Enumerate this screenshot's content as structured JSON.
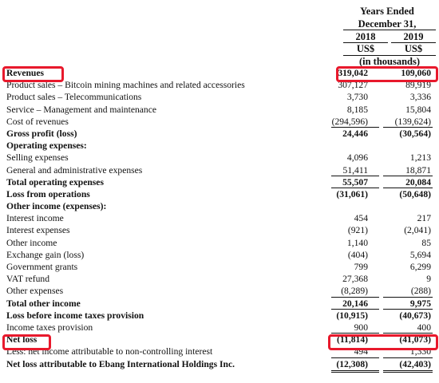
{
  "header": {
    "title_line1": "Years Ended",
    "title_line2": "December 31,",
    "year1": "2018",
    "year2": "2019",
    "currency1": "US$",
    "currency2": "US$",
    "unit": "(in thousands)"
  },
  "rows": [
    {
      "label": "Revenues",
      "v1": "319,042",
      "v2": "109,060",
      "bold": true
    },
    {
      "label": "Product sales – Bitcoin mining machines and related accessories",
      "v1": "307,127",
      "v2": "89,919"
    },
    {
      "label": "Product sales – Telecommunications",
      "v1": "3,730",
      "v2": "3,336"
    },
    {
      "label": "Service – Management and maintenance",
      "v1": "8,185",
      "v2": "15,804"
    },
    {
      "label": "Cost of revenues",
      "v1": "(294,596)",
      "v2": "(139,624)",
      "under": "single"
    },
    {
      "label": "Gross profit (loss)",
      "v1": "24,446",
      "v2": "(30,564)",
      "bold": true
    },
    {
      "label": "Operating expenses:",
      "v1": "",
      "v2": "",
      "bold": true
    },
    {
      "label": "Selling expenses",
      "v1": "4,096",
      "v2": "1,213"
    },
    {
      "label": "General and administrative expenses",
      "v1": "51,411",
      "v2": "18,871",
      "under": "single"
    },
    {
      "label": "Total operating expenses",
      "v1": "55,507",
      "v2": "20,084",
      "bold": true,
      "under": "single"
    },
    {
      "label": "Loss from operations",
      "v1": "(31,061)",
      "v2": "(50,648)",
      "bold": true
    },
    {
      "label": "Other income (expenses):",
      "v1": "",
      "v2": "",
      "bold": true
    },
    {
      "label": "Interest income",
      "v1": "454",
      "v2": "217"
    },
    {
      "label": "Interest expenses",
      "v1": "(921)",
      "v2": "(2,041)"
    },
    {
      "label": "Other income",
      "v1": "1,140",
      "v2": "85"
    },
    {
      "label": "Exchange gain (loss)",
      "v1": "(404)",
      "v2": "5,694"
    },
    {
      "label": "Government grants",
      "v1": "799",
      "v2": "6,299"
    },
    {
      "label": "VAT refund",
      "v1": "27,368",
      "v2": "9"
    },
    {
      "label": "Other expenses",
      "v1": "(8,289)",
      "v2": "(288)",
      "under": "single"
    },
    {
      "label": "Total other income",
      "v1": "20,146",
      "v2": "9,975",
      "bold": true,
      "under": "single"
    },
    {
      "label": "Loss before income taxes provision",
      "v1": "(10,915)",
      "v2": "(40,673)",
      "bold": true
    },
    {
      "label": "Income taxes provision",
      "v1": "900",
      "v2": "400",
      "under": "single"
    },
    {
      "label": "Net loss",
      "v1": "(11,814)",
      "v2": "(41,073)",
      "bold": true
    },
    {
      "label": "Less: net income attributable to non-controlling interest",
      "v1": "494",
      "v2": "1,330",
      "under": "single"
    },
    {
      "label": "Net loss attributable to Ebang International Holdings Inc.",
      "v1": "(12,308)",
      "v2": "(42,403)",
      "bold": true,
      "under": "double"
    }
  ],
  "colors": {
    "highlight": "#e8192c"
  }
}
